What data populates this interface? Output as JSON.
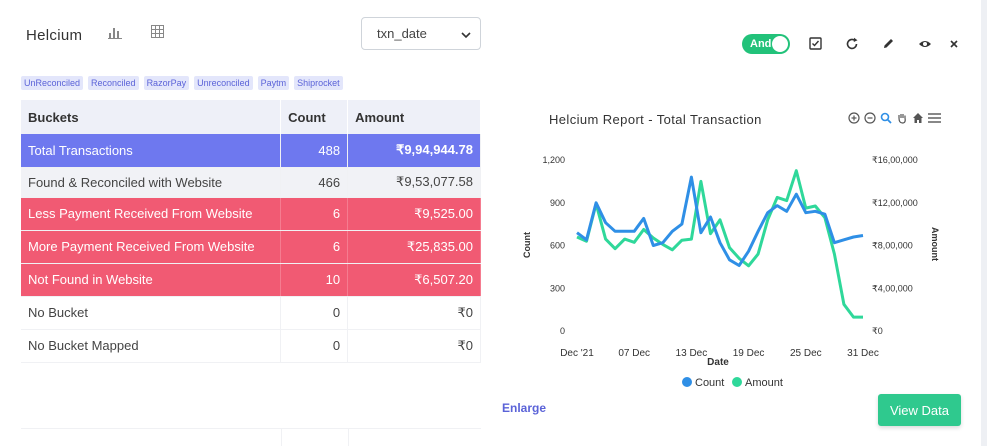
{
  "header": {
    "title": "Helcium",
    "select_value": "txn_date",
    "toggle_label": "And"
  },
  "chips": [
    "UnReconciled",
    "Reconciled",
    "RazorPay",
    "Unreconciled",
    "Paytm",
    "Shiprocket"
  ],
  "table": {
    "headers": [
      "Buckets",
      "Count",
      "Amount"
    ],
    "rows": [
      {
        "bucket": "Total Transactions",
        "count": "488",
        "amount": "₹9,94,944.78"
      },
      {
        "bucket": "Found & Reconciled with Website",
        "count": "466",
        "amount": "₹9,53,077.58"
      },
      {
        "bucket": "Less Payment Received From Website",
        "count": "6",
        "amount": "₹9,525.00"
      },
      {
        "bucket": "More Payment Received From Website",
        "count": "6",
        "amount": "₹25,835.00"
      },
      {
        "bucket": "Not Found in Website",
        "count": "10",
        "amount": "₹6,507.20"
      },
      {
        "bucket": "No Bucket",
        "count": "0",
        "amount": "₹0"
      },
      {
        "bucket": "No Bucket Mapped",
        "count": "0",
        "amount": "₹0"
      }
    ]
  },
  "chart_title": "Helcium Report - Total Transaction",
  "actions": {
    "enlarge": "Enlarge",
    "view_data": "View Data"
  },
  "colors": {
    "count_series": "#2f8fe6",
    "amount_series": "#2fd89a",
    "total_row": "#6e78ef",
    "alert_row": "#f15a73",
    "accent": "#22c27a"
  },
  "chart_data": {
    "type": "line",
    "xlabel": "Date",
    "ylabel_left": "Count",
    "ylabel_right": "Amount",
    "x_ticks": [
      "Dec '21",
      "07 Dec",
      "13 Dec",
      "19 Dec",
      "25 Dec",
      "31 Dec"
    ],
    "y_left_ticks": [
      "0",
      "300",
      "600",
      "900",
      "1,200"
    ],
    "y_right_ticks": [
      "₹0",
      "₹4,00,000",
      "₹8,00,000",
      "₹12,00,000",
      "₹16,00,000"
    ],
    "ylim_left": [
      0,
      1200
    ],
    "ylim_right": [
      0,
      1600000
    ],
    "legend": "bottom",
    "series": [
      {
        "name": "Count",
        "axis": "left",
        "values": [
          690,
          640,
          900,
          760,
          700,
          700,
          700,
          790,
          600,
          620,
          700,
          750,
          1080,
          690,
          800,
          620,
          500,
          460,
          560,
          700,
          830,
          880,
          840,
          960,
          830,
          840,
          820,
          620,
          640,
          660,
          670
        ]
      },
      {
        "name": "Amount",
        "axis": "right",
        "values": [
          880000,
          840000,
          1190000,
          860000,
          770000,
          860000,
          830000,
          950000,
          870000,
          810000,
          760000,
          850000,
          860000,
          1400000,
          910000,
          1040000,
          780000,
          680000,
          610000,
          720000,
          1040000,
          1250000,
          1220000,
          1500000,
          1150000,
          1170000,
          1060000,
          720000,
          250000,
          130000,
          130000
        ]
      }
    ]
  }
}
